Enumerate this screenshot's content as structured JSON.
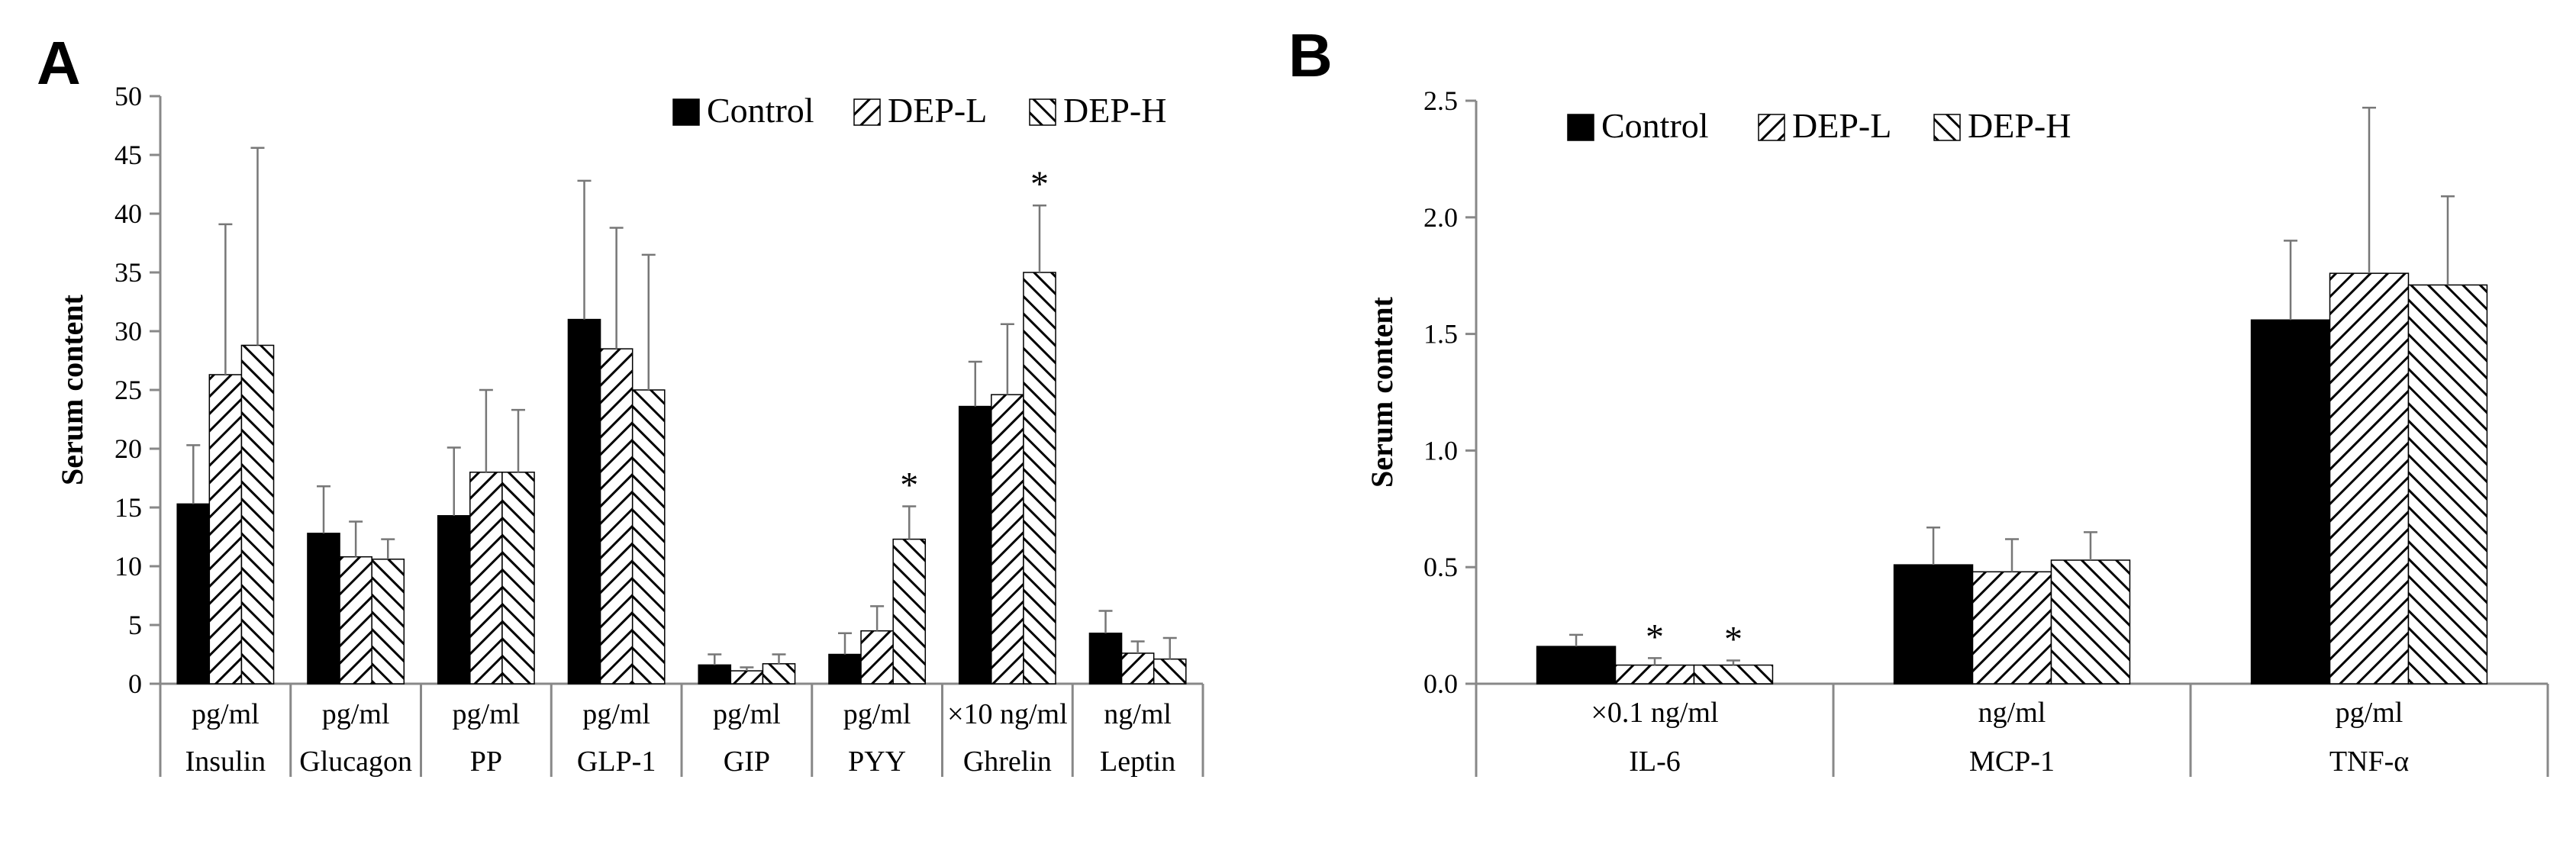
{
  "chart_data": [
    {
      "type": "bar",
      "panel": "A",
      "ylabel": "Serum content",
      "ylim": [
        0,
        50
      ],
      "yticks": [
        0,
        5,
        10,
        15,
        20,
        25,
        30,
        35,
        40,
        45,
        50
      ],
      "categories": [
        "Insulin",
        "Glucagon",
        "PP",
        "GLP-1",
        "GIP",
        "PYY",
        "Ghrelin",
        "Leptin"
      ],
      "units": [
        "pg/ml",
        "pg/ml",
        "pg/ml",
        "pg/ml",
        "pg/ml",
        "pg/ml",
        "×10 ng/ml",
        "ng/ml"
      ],
      "legend_position": "top-right",
      "series": [
        {
          "name": "Control",
          "fill": "solid",
          "values": [
            15.3,
            12.8,
            14.3,
            31.0,
            1.6,
            2.5,
            23.6,
            4.3
          ],
          "errors": [
            5.0,
            4.0,
            5.8,
            11.8,
            0.9,
            1.8,
            3.8,
            1.9
          ]
        },
        {
          "name": "DEP-L",
          "fill": "hatch-right",
          "values": [
            26.3,
            10.8,
            18.0,
            28.5,
            1.1,
            4.5,
            24.6,
            2.6
          ],
          "errors": [
            12.8,
            3.0,
            7.0,
            10.3,
            0.3,
            2.1,
            6.0,
            1.0
          ]
        },
        {
          "name": "DEP-H",
          "fill": "hatch-left",
          "values": [
            28.8,
            10.6,
            18.0,
            25.0,
            1.7,
            12.3,
            35.0,
            2.1
          ],
          "errors": [
            16.8,
            1.7,
            5.3,
            11.5,
            0.8,
            2.8,
            5.7,
            1.8
          ]
        }
      ],
      "significance": [
        {
          "category": "PYY",
          "series": "DEP-H",
          "label": "*"
        },
        {
          "category": "Ghrelin",
          "series": "DEP-H",
          "label": "*"
        }
      ]
    },
    {
      "type": "bar",
      "panel": "B",
      "ylabel": "Serum content",
      "ylim": [
        0,
        2.5
      ],
      "yticks": [
        "0.0",
        "0.5",
        "1.0",
        "1.5",
        "2.0",
        "2.5"
      ],
      "categories": [
        "IL-6",
        "MCP-1",
        "TNF-α"
      ],
      "units": [
        "×0.1 ng/ml",
        "ng/ml",
        "pg/ml"
      ],
      "legend_position": "top-left",
      "series": [
        {
          "name": "Control",
          "fill": "solid",
          "values": [
            0.16,
            0.51,
            1.56
          ],
          "errors": [
            0.05,
            0.16,
            0.34
          ]
        },
        {
          "name": "DEP-L",
          "fill": "hatch-right",
          "values": [
            0.08,
            0.48,
            1.76
          ],
          "errors": [
            0.03,
            0.14,
            0.71
          ]
        },
        {
          "name": "DEP-H",
          "fill": "hatch-left",
          "values": [
            0.08,
            0.53,
            1.71
          ],
          "errors": [
            0.02,
            0.12,
            0.38
          ]
        }
      ],
      "significance": [
        {
          "category": "IL-6",
          "series": "DEP-L",
          "label": "*"
        },
        {
          "category": "IL-6",
          "series": "DEP-H",
          "label": "*"
        }
      ]
    }
  ]
}
